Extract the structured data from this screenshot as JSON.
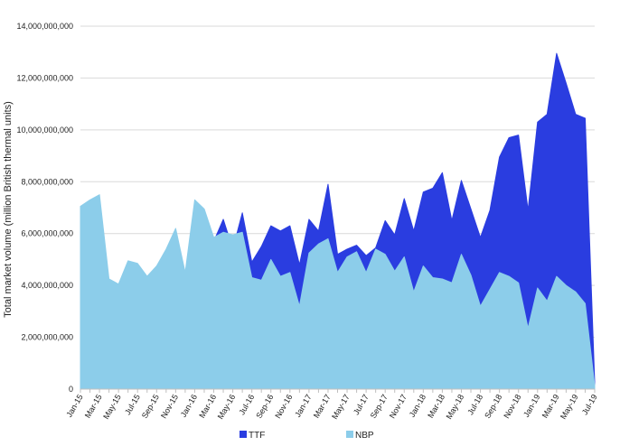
{
  "chart_data": {
    "type": "area",
    "title": "",
    "xlabel": "",
    "ylabel": "Total market volume (million British thermal units)",
    "ylim": [
      0,
      14000000000
    ],
    "y_ticks": [
      0,
      2000000000,
      4000000000,
      6000000000,
      8000000000,
      10000000000,
      12000000000,
      14000000000
    ],
    "y_tick_labels": [
      "0",
      "2,000,000,000",
      "4,000,000,000",
      "6,000,000,000",
      "8,000,000,000",
      "10,000,000,000",
      "12,000,000,000",
      "14,000,000,000"
    ],
    "grid": true,
    "legend_position": "bottom",
    "categories": [
      "Jan-15",
      "Feb-15",
      "Mar-15",
      "Apr-15",
      "May-15",
      "Jun-15",
      "Jul-15",
      "Aug-15",
      "Sep-15",
      "Oct-15",
      "Nov-15",
      "Dec-15",
      "Jan-16",
      "Feb-16",
      "Mar-16",
      "Apr-16",
      "May-16",
      "Jun-16",
      "Jul-16",
      "Aug-16",
      "Sep-16",
      "Oct-16",
      "Nov-16",
      "Dec-16",
      "Jan-17",
      "Feb-17",
      "Mar-17",
      "Apr-17",
      "May-17",
      "Jun-17",
      "Jul-17",
      "Aug-17",
      "Sep-17",
      "Oct-17",
      "Nov-17",
      "Dec-17",
      "Jan-18",
      "Feb-18",
      "Mar-18",
      "Apr-18",
      "May-18",
      "Jun-18",
      "Jul-18",
      "Aug-18",
      "Sep-18",
      "Oct-18",
      "Nov-18",
      "Dec-18",
      "Jan-19",
      "Feb-19",
      "Mar-19",
      "Apr-19",
      "May-19",
      "Jun-19",
      "Jul-19"
    ],
    "x_tick_labels": [
      "Jan-15",
      "Mar-15",
      "May-15",
      "Jul-15",
      "Sep-15",
      "Nov-15",
      "Jan-16",
      "Mar-16",
      "May-16",
      "Jul-16",
      "Sep-16",
      "Nov-16",
      "Jan-17",
      "Mar-17",
      "May-17",
      "Jul-17",
      "Sep-17",
      "Nov-17",
      "Jan-18",
      "Mar-18",
      "May-18",
      "Jul-18",
      "Sep-18",
      "Nov-18",
      "Jan-19",
      "Mar-19",
      "May-19",
      "Jul-19"
    ],
    "series": [
      {
        "name": "TTF",
        "color": "#2a3de0",
        "values": [
          5200000000,
          5700000000,
          6050000000,
          3400000000,
          3250000000,
          4300000000,
          4300000000,
          4200000000,
          4500000000,
          5000000000,
          5500000000,
          4200000000,
          6650000000,
          6900000000,
          5700000000,
          6550000000,
          5400000000,
          6800000000,
          4900000000,
          5500000000,
          6300000000,
          6100000000,
          6300000000,
          4800000000,
          6550000000,
          6100000000,
          7900000000,
          5200000000,
          5400000000,
          5550000000,
          5150000000,
          5450000000,
          6500000000,
          5950000000,
          7350000000,
          6100000000,
          7600000000,
          7750000000,
          8350000000,
          6500000000,
          8050000000,
          6950000000,
          5850000000,
          6900000000,
          8950000000,
          9700000000,
          9800000000,
          6900000000,
          10300000000,
          10600000000,
          12950000000,
          11800000000,
          10600000000,
          10450000000,
          250000000
        ]
      },
      {
        "name": "NBP",
        "color": "#8ccdea",
        "values": [
          7050000000,
          7300000000,
          7500000000,
          4250000000,
          4050000000,
          4950000000,
          4850000000,
          4350000000,
          4750000000,
          5400000000,
          6200000000,
          4500000000,
          7300000000,
          6950000000,
          5850000000,
          6050000000,
          5950000000,
          6050000000,
          4300000000,
          4200000000,
          5000000000,
          4350000000,
          4500000000,
          3200000000,
          5250000000,
          5600000000,
          5800000000,
          4500000000,
          5100000000,
          5300000000,
          4500000000,
          5400000000,
          5200000000,
          4550000000,
          5100000000,
          3750000000,
          4750000000,
          4300000000,
          4250000000,
          4100000000,
          5200000000,
          4400000000,
          3200000000,
          3850000000,
          4500000000,
          4350000000,
          4100000000,
          2350000000,
          3900000000,
          3400000000,
          4350000000,
          4000000000,
          3750000000,
          3300000000,
          150000000
        ]
      }
    ]
  }
}
